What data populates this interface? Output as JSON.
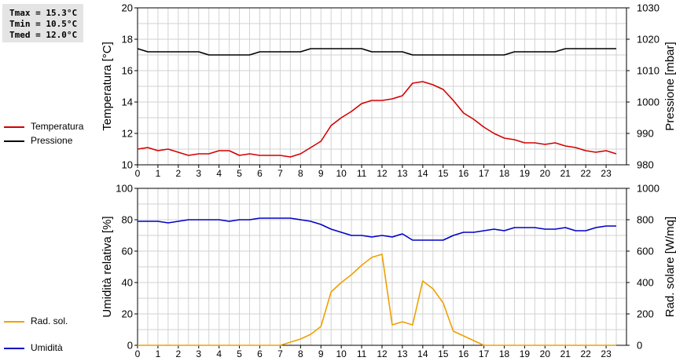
{
  "stats": {
    "tmax": "Tmax = 15.3°C",
    "tmin": "Tmin = 10.5°C",
    "tmed": "Tmed = 12.0°C"
  },
  "legend_top": [
    {
      "label": "Temperatura",
      "color": "#d40000"
    },
    {
      "label": "Pressione",
      "color": "#000000"
    }
  ],
  "legend_bottom": [
    {
      "label": "Umidità",
      "color": "#0000c8"
    },
    {
      "label": "Rad. sol.",
      "color": "#f0a000"
    }
  ],
  "chart_data": [
    {
      "type": "line",
      "ylabel_left": "Temperatura [°C]",
      "ylabel_right": "Pressione [mbar]",
      "xlim": [
        0,
        24
      ],
      "x_ticks": [
        0,
        1,
        2,
        3,
        4,
        5,
        6,
        7,
        8,
        9,
        10,
        11,
        12,
        13,
        14,
        15,
        16,
        17,
        18,
        19,
        20,
        21,
        22,
        23
      ],
      "ylim_left": [
        10,
        20
      ],
      "yticks_left": [
        10,
        12,
        14,
        16,
        18,
        20
      ],
      "ylim_right": [
        980,
        1030
      ],
      "yticks_right": [
        980,
        990,
        1000,
        1010,
        1020,
        1030
      ],
      "grid": true,
      "series": [
        {
          "name": "Temperatura",
          "axis": "left",
          "color": "#d40000",
          "x": [
            0,
            0.5,
            1,
            1.5,
            2,
            2.5,
            3,
            3.5,
            4,
            4.5,
            5,
            5.5,
            6,
            6.5,
            7,
            7.5,
            8,
            8.5,
            9,
            9.5,
            10,
            10.5,
            11,
            11.5,
            12,
            12.5,
            13,
            13.5,
            14,
            14.5,
            15,
            15.5,
            16,
            16.5,
            17,
            17.5,
            18,
            18.5,
            19,
            19.5,
            20,
            20.5,
            21,
            21.5,
            22,
            22.5,
            23,
            23.5
          ],
          "y": [
            11.0,
            11.1,
            10.9,
            11.0,
            10.8,
            10.6,
            10.7,
            10.7,
            10.9,
            10.9,
            10.6,
            10.7,
            10.6,
            10.6,
            10.6,
            10.5,
            10.7,
            11.1,
            11.5,
            12.5,
            13.0,
            13.4,
            13.9,
            14.1,
            14.1,
            14.2,
            14.4,
            15.2,
            15.3,
            15.1,
            14.8,
            14.1,
            13.3,
            12.9,
            12.4,
            12.0,
            11.7,
            11.6,
            11.4,
            11.4,
            11.3,
            11.4,
            11.2,
            11.1,
            10.9,
            10.8,
            10.9,
            10.7
          ]
        },
        {
          "name": "Pressione",
          "axis": "right",
          "color": "#000000",
          "x": [
            0,
            0.5,
            1,
            1.5,
            2,
            2.5,
            3,
            3.5,
            4,
            4.5,
            5,
            5.5,
            6,
            6.5,
            7,
            7.5,
            8,
            8.5,
            9,
            9.5,
            10,
            10.5,
            11,
            11.5,
            12,
            12.5,
            13,
            13.5,
            14,
            14.5,
            15,
            15.5,
            16,
            16.5,
            17,
            17.5,
            18,
            18.5,
            19,
            19.5,
            20,
            20.5,
            21,
            21.5,
            22,
            22.5,
            23,
            23.5
          ],
          "y": [
            1017,
            1016,
            1016,
            1016,
            1016,
            1016,
            1016,
            1015,
            1015,
            1015,
            1015,
            1015,
            1016,
            1016,
            1016,
            1016,
            1016,
            1017,
            1017,
            1017,
            1017,
            1017,
            1017,
            1016,
            1016,
            1016,
            1016,
            1015,
            1015,
            1015,
            1015,
            1015,
            1015,
            1015,
            1015,
            1015,
            1015,
            1016,
            1016,
            1016,
            1016,
            1016,
            1017,
            1017,
            1017,
            1017,
            1017,
            1017
          ]
        }
      ]
    },
    {
      "type": "line",
      "ylabel_left": "Umidità relativa [%]",
      "ylabel_right": "Rad. solare [W/mq]",
      "xlim": [
        0,
        24
      ],
      "x_ticks": [
        0,
        1,
        2,
        3,
        4,
        5,
        6,
        7,
        8,
        9,
        10,
        11,
        12,
        13,
        14,
        15,
        16,
        17,
        18,
        19,
        20,
        21,
        22,
        23
      ],
      "ylim_left": [
        0,
        100
      ],
      "yticks_left": [
        0,
        20,
        40,
        60,
        80,
        100
      ],
      "ylim_right": [
        0,
        1000
      ],
      "yticks_right": [
        0,
        200,
        400,
        600,
        800,
        1000
      ],
      "grid": true,
      "series": [
        {
          "name": "Umidità",
          "axis": "left",
          "color": "#0000c8",
          "x": [
            0,
            0.5,
            1,
            1.5,
            2,
            2.5,
            3,
            3.5,
            4,
            4.5,
            5,
            5.5,
            6,
            6.5,
            7,
            7.5,
            8,
            8.5,
            9,
            9.5,
            10,
            10.5,
            11,
            11.5,
            12,
            12.5,
            13,
            13.5,
            14,
            14.5,
            15,
            15.5,
            16,
            16.5,
            17,
            17.5,
            18,
            18.5,
            19,
            19.5,
            20,
            20.5,
            21,
            21.5,
            22,
            22.5,
            23,
            23.5
          ],
          "y": [
            79,
            79,
            79,
            78,
            79,
            80,
            80,
            80,
            80,
            79,
            80,
            80,
            81,
            81,
            81,
            81,
            80,
            79,
            77,
            74,
            72,
            70,
            70,
            69,
            70,
            69,
            71,
            67,
            67,
            67,
            67,
            70,
            72,
            72,
            73,
            74,
            73,
            75,
            75,
            75,
            74,
            74,
            75,
            73,
            73,
            75,
            76,
            76
          ]
        },
        {
          "name": "Rad. sol.",
          "axis": "right",
          "color": "#f0a000",
          "x": [
            0,
            0.5,
            1,
            1.5,
            2,
            2.5,
            3,
            3.5,
            4,
            4.5,
            5,
            5.5,
            6,
            6.5,
            7,
            7.5,
            8,
            8.5,
            9,
            9.5,
            10,
            10.5,
            11,
            11.5,
            12,
            12.5,
            13,
            13.5,
            14,
            14.5,
            15,
            15.5,
            16,
            16.5,
            17,
            17.5,
            18,
            18.5,
            19,
            19.5,
            20,
            20.5,
            21,
            21.5,
            22,
            22.5,
            23,
            23.5
          ],
          "y": [
            0,
            0,
            0,
            0,
            0,
            0,
            0,
            0,
            0,
            0,
            0,
            0,
            0,
            0,
            0,
            20,
            40,
            70,
            120,
            340,
            400,
            450,
            510,
            560,
            580,
            130,
            150,
            130,
            410,
            360,
            270,
            90,
            60,
            30,
            0,
            0,
            0,
            0,
            0,
            0,
            0,
            0,
            0,
            0,
            0,
            0,
            0,
            0
          ]
        }
      ]
    }
  ]
}
